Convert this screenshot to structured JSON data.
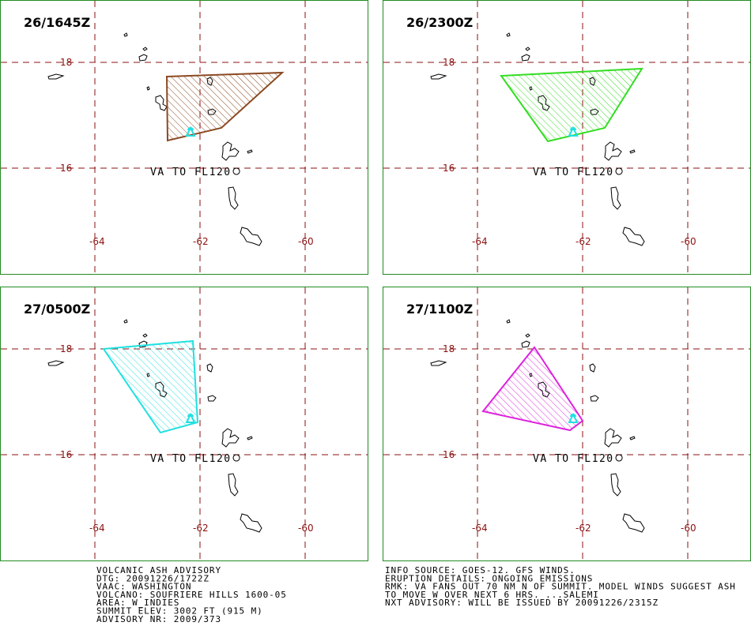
{
  "panels": [
    {
      "time": "26/1645Z",
      "lat_labels": [
        "18",
        "16"
      ],
      "lon_labels": [
        "-64",
        "-62",
        "-60"
      ],
      "label": "VA TO FL120",
      "color": "#8b4a22"
    },
    {
      "time": "26/2300Z",
      "lat_labels": [
        "18",
        "16"
      ],
      "lon_labels": [
        "-64",
        "-62",
        "-60"
      ],
      "label": "VA TO FL120",
      "color": "#33dd22"
    },
    {
      "time": "27/0500Z",
      "lat_labels": [
        "18",
        "16"
      ],
      "lon_labels": [
        "-64",
        "-62",
        "-60"
      ],
      "label": "VA TO FL120",
      "color": "#22e0e0"
    },
    {
      "time": "27/1100Z",
      "lat_labels": [
        "18",
        "16"
      ],
      "lon_labels": [
        "-64",
        "-62",
        "-60"
      ],
      "label": "VA TO FL120",
      "color": "#dd22dd"
    }
  ],
  "advisory": {
    "left": [
      "VOLCANIC ASH ADVISORY",
      "DTG: 20091226/1722Z",
      "VAAC: WASHINGTON",
      "VOLCANO: SOUFRIERE HILLS 1600-05",
      "AREA: W_INDIES",
      "SUMMIT ELEV: 3002 FT (915 M)",
      "ADVISORY NR: 2009/373"
    ],
    "right": [
      "INFO SOURCE: GOES-12. GFS WINDS.",
      "ERUPTION DETAILS: ONGOING EMISSIONS",
      "RMK: VA FANS OUT 70 NM N OF SUMMIT. MODEL WINDS SUGGEST ASH",
      "TO MOVE W OVER NEXT 6 HRS. ...SALEMI",
      "NXT ADVISORY: WILL BE ISSUED BY 20091226/2315Z"
    ]
  }
}
